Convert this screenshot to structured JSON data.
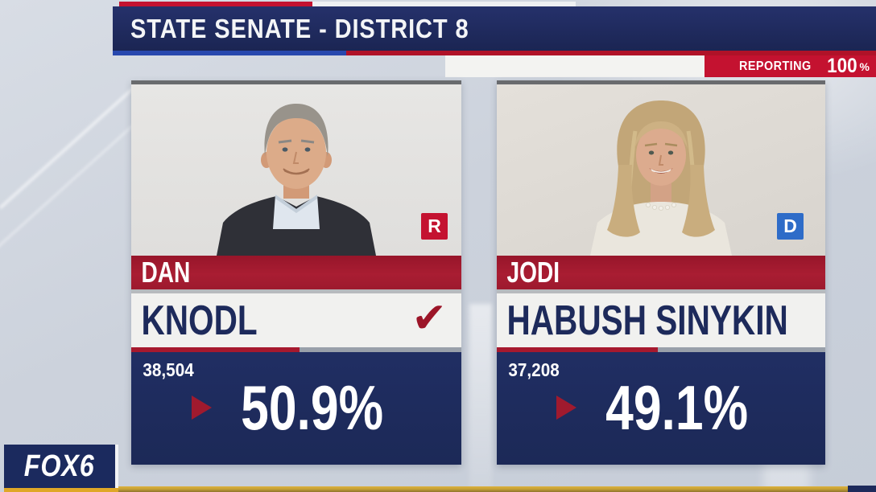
{
  "banner": {
    "title": "STATE SENATE - DISTRICT 8"
  },
  "reporting": {
    "label": "REPORTING",
    "value": "100",
    "unit": "%"
  },
  "candidates": [
    {
      "first_name": "DAN",
      "last_name": "KNODL",
      "party": "R",
      "party_color": "#c41230",
      "votes": "38,504",
      "percent_label": "50.9%",
      "percent": 50.9,
      "winner": true,
      "check_glyph": "✔"
    },
    {
      "first_name": "JODI",
      "last_name": "HABUSH SINYKIN",
      "party": "D",
      "party_color": "#2e6cc8",
      "votes": "37,208",
      "percent_label": "49.1%",
      "percent": 49.1,
      "winner": false,
      "check_glyph": "✔"
    }
  ],
  "station": {
    "name": "FOX6"
  },
  "colors": {
    "navy": "#1d2a5b",
    "stripe_red": "#a6192e",
    "bright_red": "#c41230",
    "dem_blue": "#2e6cc8",
    "royal_blue": "#2848ae",
    "gold": "#dfa727",
    "progress_gray": "#99a0aa",
    "background": "#ccd2dc"
  }
}
